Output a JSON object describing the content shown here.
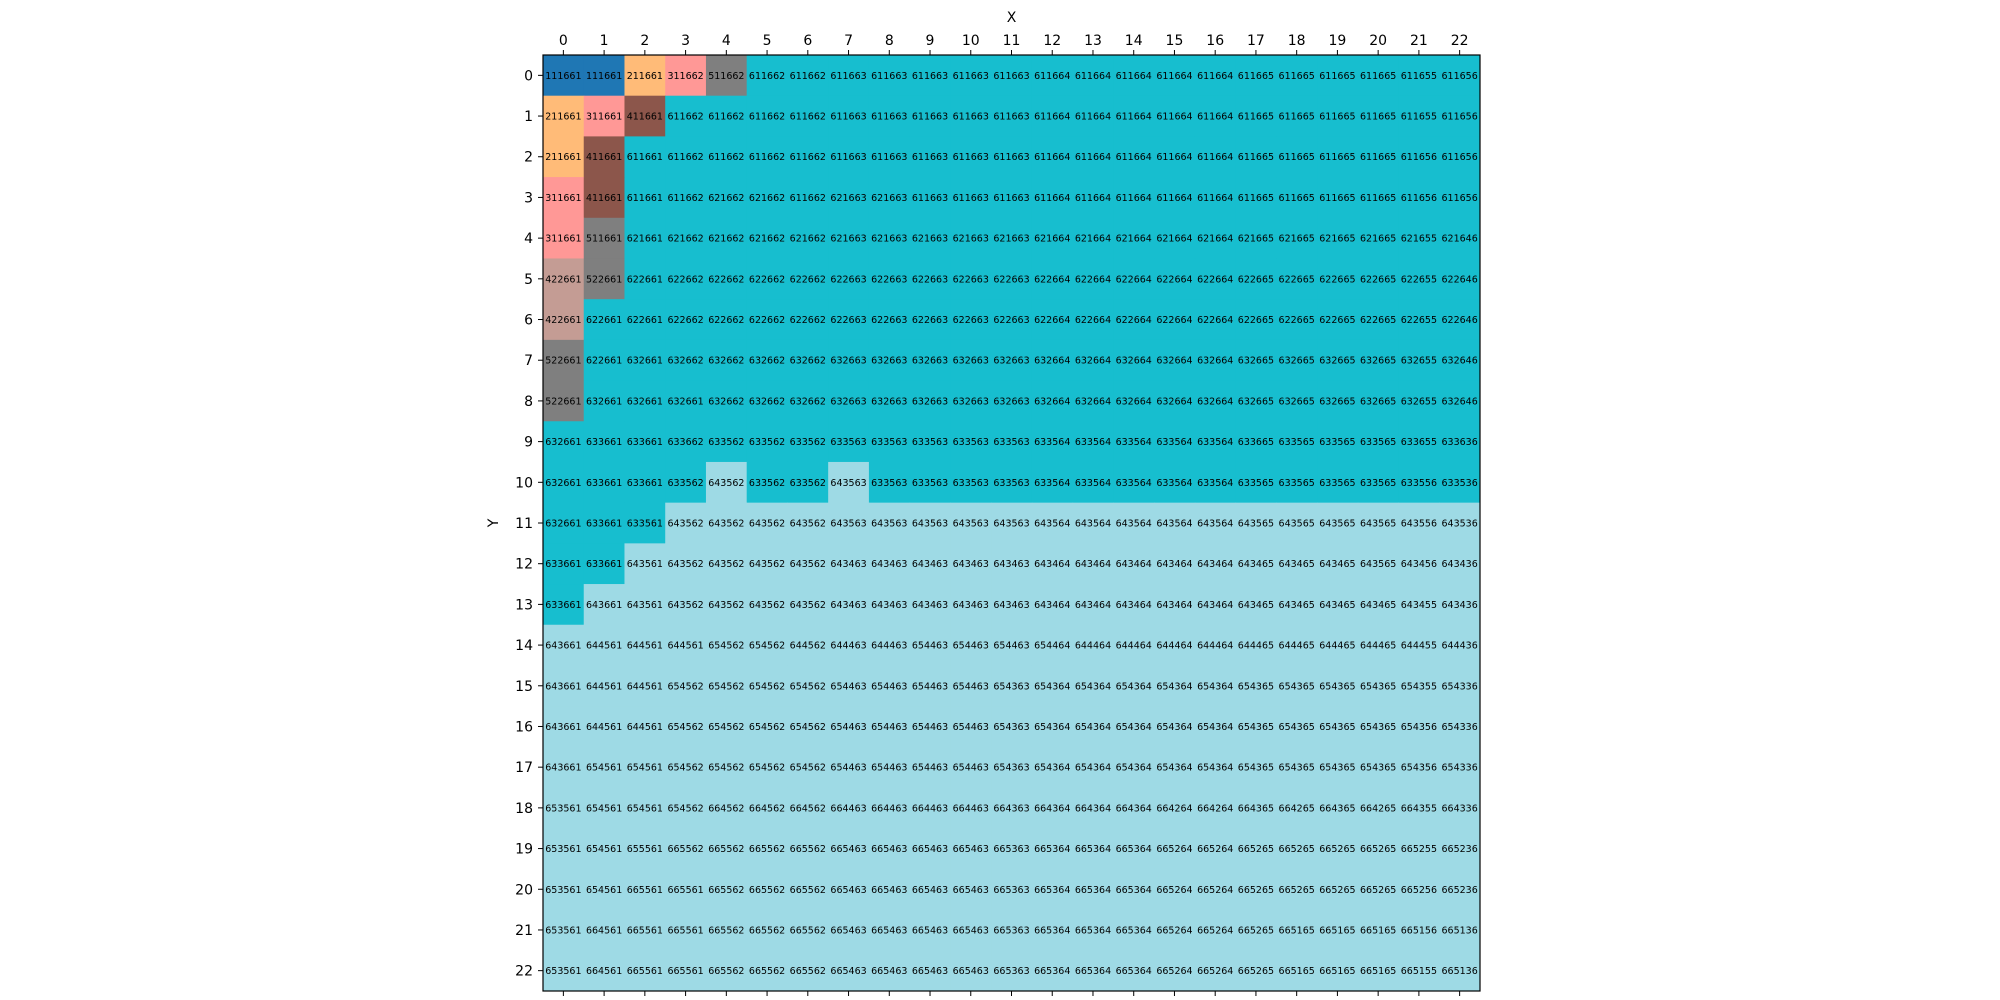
{
  "chart_data": {
    "type": "heatmap",
    "xlabel": "X",
    "ylabel": "Y",
    "x_ticks": [
      "0",
      "1",
      "2",
      "3",
      "4",
      "5",
      "6",
      "7",
      "8",
      "9",
      "10",
      "11",
      "12",
      "13",
      "14",
      "15",
      "16",
      "17",
      "18",
      "19",
      "20",
      "21",
      "22"
    ],
    "y_ticks": [
      "0",
      "1",
      "2",
      "3",
      "4",
      "5",
      "6",
      "7",
      "8",
      "9",
      "10",
      "11",
      "12",
      "13",
      "14",
      "15",
      "16",
      "17",
      "18",
      "19",
      "20",
      "21",
      "22"
    ],
    "x_axis_position": "top",
    "grid": false,
    "colors": {
      "1": "#1f77b4",
      "2": "#ffbb78",
      "3": "#ff9896",
      "4": "#8c564b",
      "5": "#7f7f7f",
      "42": "#c49c94",
      "52": "#7f7f7f",
      "62": "#17becf",
      "63": "#17becf",
      "64": "#9edae5",
      "65": "#9edae5",
      "66": "#9edae5",
      "6": "#17becf"
    },
    "grid_values": [
      [
        "111661",
        "111661",
        "211661",
        "311662",
        "511662",
        "611662",
        "611662",
        "611663",
        "611663",
        "611663",
        "611663",
        "611663",
        "611664",
        "611664",
        "611664",
        "611664",
        "611664",
        "611665",
        "611665",
        "611665",
        "611665",
        "611655",
        "611656"
      ],
      [
        "211661",
        "311661",
        "411661",
        "611662",
        "611662",
        "611662",
        "611662",
        "611663",
        "611663",
        "611663",
        "611663",
        "611663",
        "611664",
        "611664",
        "611664",
        "611664",
        "611664",
        "611665",
        "611665",
        "611665",
        "611665",
        "611655",
        "611656"
      ],
      [
        "211661",
        "411661",
        "611661",
        "611662",
        "611662",
        "611662",
        "611662",
        "611663",
        "611663",
        "611663",
        "611663",
        "611663",
        "611664",
        "611664",
        "611664",
        "611664",
        "611664",
        "611665",
        "611665",
        "611665",
        "611665",
        "611656",
        "611656"
      ],
      [
        "311661",
        "411661",
        "611661",
        "611662",
        "621662",
        "621662",
        "611662",
        "621663",
        "621663",
        "611663",
        "611663",
        "611663",
        "611664",
        "611664",
        "611664",
        "611664",
        "611664",
        "611665",
        "611665",
        "611665",
        "611665",
        "611656",
        "611656"
      ],
      [
        "311661",
        "511661",
        "621661",
        "621662",
        "621662",
        "621662",
        "621662",
        "621663",
        "621663",
        "621663",
        "621663",
        "621663",
        "621664",
        "621664",
        "621664",
        "621664",
        "621664",
        "621665",
        "621665",
        "621665",
        "621665",
        "621655",
        "621646"
      ],
      [
        "422661",
        "522661",
        "622661",
        "622662",
        "622662",
        "622662",
        "622662",
        "622663",
        "622663",
        "622663",
        "622663",
        "622663",
        "622664",
        "622664",
        "622664",
        "622664",
        "622664",
        "622665",
        "622665",
        "622665",
        "622665",
        "622655",
        "622646"
      ],
      [
        "422661",
        "622661",
        "622661",
        "622662",
        "622662",
        "622662",
        "622662",
        "622663",
        "622663",
        "622663",
        "622663",
        "622663",
        "622664",
        "622664",
        "622664",
        "622664",
        "622664",
        "622665",
        "622665",
        "622665",
        "622665",
        "622655",
        "622646"
      ],
      [
        "522661",
        "622661",
        "632661",
        "632662",
        "632662",
        "632662",
        "632662",
        "632663",
        "632663",
        "632663",
        "632663",
        "632663",
        "632664",
        "632664",
        "632664",
        "632664",
        "632664",
        "632665",
        "632665",
        "632665",
        "632665",
        "632655",
        "632646"
      ],
      [
        "522661",
        "632661",
        "632661",
        "632661",
        "632662",
        "632662",
        "632662",
        "632663",
        "632663",
        "632663",
        "632663",
        "632663",
        "632664",
        "632664",
        "632664",
        "632664",
        "632664",
        "632665",
        "632665",
        "632665",
        "632665",
        "632655",
        "632646"
      ],
      [
        "632661",
        "633661",
        "633661",
        "633662",
        "633562",
        "633562",
        "633562",
        "633563",
        "633563",
        "633563",
        "633563",
        "633563",
        "633564",
        "633564",
        "633564",
        "633564",
        "633564",
        "633665",
        "633565",
        "633565",
        "633565",
        "633655",
        "633636"
      ],
      [
        "632661",
        "633661",
        "633661",
        "633562",
        "643562",
        "633562",
        "633562",
        "643563",
        "633563",
        "633563",
        "633563",
        "633563",
        "633564",
        "633564",
        "633564",
        "633564",
        "633564",
        "633565",
        "633565",
        "633565",
        "633565",
        "633556",
        "633536"
      ],
      [
        "632661",
        "633661",
        "633561",
        "643562",
        "643562",
        "643562",
        "643562",
        "643563",
        "643563",
        "643563",
        "643563",
        "643563",
        "643564",
        "643564",
        "643564",
        "643564",
        "643564",
        "643565",
        "643565",
        "643565",
        "643565",
        "643556",
        "643536"
      ],
      [
        "633661",
        "633661",
        "643561",
        "643562",
        "643562",
        "643562",
        "643562",
        "643463",
        "643463",
        "643463",
        "643463",
        "643463",
        "643464",
        "643464",
        "643464",
        "643464",
        "643464",
        "643465",
        "643465",
        "643465",
        "643565",
        "643456",
        "643436"
      ],
      [
        "633661",
        "643661",
        "643561",
        "643562",
        "643562",
        "643562",
        "643562",
        "643463",
        "643463",
        "643463",
        "643463",
        "643463",
        "643464",
        "643464",
        "643464",
        "643464",
        "643464",
        "643465",
        "643465",
        "643465",
        "643465",
        "643455",
        "643436"
      ],
      [
        "643661",
        "644561",
        "644561",
        "644561",
        "654562",
        "654562",
        "644562",
        "644463",
        "644463",
        "654463",
        "654463",
        "654463",
        "654464",
        "644464",
        "644464",
        "644464",
        "644464",
        "644465",
        "644465",
        "644465",
        "644465",
        "644455",
        "644436"
      ],
      [
        "643661",
        "644561",
        "644561",
        "654562",
        "654562",
        "654562",
        "654562",
        "654463",
        "654463",
        "654463",
        "654463",
        "654363",
        "654364",
        "654364",
        "654364",
        "654364",
        "654364",
        "654365",
        "654365",
        "654365",
        "654365",
        "654355",
        "654336"
      ],
      [
        "643661",
        "644561",
        "644561",
        "654562",
        "654562",
        "654562",
        "654562",
        "654463",
        "654463",
        "654463",
        "654463",
        "654363",
        "654364",
        "654364",
        "654364",
        "654364",
        "654364",
        "654365",
        "654365",
        "654365",
        "654365",
        "654356",
        "654336"
      ],
      [
        "643661",
        "654561",
        "654561",
        "654562",
        "654562",
        "654562",
        "654562",
        "654463",
        "654463",
        "654463",
        "654463",
        "654363",
        "654364",
        "654364",
        "654364",
        "654364",
        "654364",
        "654365",
        "654365",
        "654365",
        "654365",
        "654356",
        "654336"
      ],
      [
        "653561",
        "654561",
        "654561",
        "654562",
        "664562",
        "664562",
        "664562",
        "664463",
        "664463",
        "664463",
        "664463",
        "664363",
        "664364",
        "664364",
        "664364",
        "664264",
        "664264",
        "664365",
        "664265",
        "664365",
        "664265",
        "664355",
        "664336"
      ],
      [
        "653561",
        "654561",
        "655561",
        "665562",
        "665562",
        "665562",
        "665562",
        "665463",
        "665463",
        "665463",
        "665463",
        "665363",
        "665364",
        "665364",
        "665364",
        "665264",
        "665264",
        "665265",
        "665265",
        "665265",
        "665265",
        "665255",
        "665236"
      ],
      [
        "653561",
        "654561",
        "665561",
        "665561",
        "665562",
        "665562",
        "665562",
        "665463",
        "665463",
        "665463",
        "665463",
        "665363",
        "665364",
        "665364",
        "665364",
        "665264",
        "665264",
        "665265",
        "665265",
        "665265",
        "665265",
        "665256",
        "665236"
      ],
      [
        "653561",
        "664561",
        "665561",
        "665561",
        "665562",
        "665562",
        "665562",
        "665463",
        "665463",
        "665463",
        "665463",
        "665363",
        "665364",
        "665364",
        "665364",
        "665264",
        "665264",
        "665265",
        "665165",
        "665165",
        "665165",
        "665156",
        "665136"
      ],
      [
        "653561",
        "664561",
        "665561",
        "665561",
        "665562",
        "665562",
        "665562",
        "665463",
        "665463",
        "665463",
        "665463",
        "665363",
        "665364",
        "665364",
        "665364",
        "665264",
        "665264",
        "665265",
        "665165",
        "665165",
        "665165",
        "665155",
        "665136"
      ]
    ]
  }
}
